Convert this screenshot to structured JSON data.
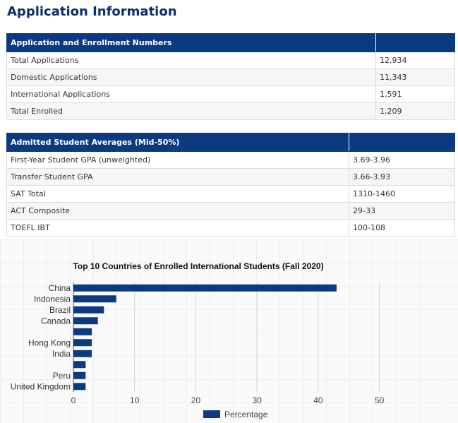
{
  "page": {
    "title": "Application Information"
  },
  "enrollment_table": {
    "headers": [
      "Application and Enrollment Numbers",
      ""
    ],
    "rows": [
      [
        "Total Applications",
        "12,934"
      ],
      [
        "Domestic Applications",
        "11,343"
      ],
      [
        "International Applications",
        "1,591"
      ],
      [
        "Total Enrolled",
        "1,209"
      ]
    ]
  },
  "averages_table": {
    "headers": [
      "Admitted Student Averages (Mid-50%)",
      ""
    ],
    "rows": [
      [
        "First-Year Student GPA (unweighted)",
        "3.69-3.96"
      ],
      [
        "Transfer Student GPA",
        "3.66-3.93"
      ],
      [
        "SAT Total",
        "1310-1460"
      ],
      [
        "ACT Composite",
        "29-33"
      ],
      [
        "TOEFL IBT",
        "100-108"
      ]
    ]
  },
  "chart_data": {
    "type": "bar",
    "orientation": "horizontal",
    "title": "Top 10 Countries of Enrolled International Students (Fall 2020)",
    "categories": [
      "China",
      "Indonesia",
      "Brazil",
      "Canada",
      "",
      "Hong Kong",
      "India",
      "",
      "Peru",
      "United Kingdom"
    ],
    "series": [
      {
        "name": "Percentage",
        "values": [
          43,
          7,
          5,
          4,
          3,
          3,
          3,
          2,
          2,
          2
        ]
      }
    ],
    "xlim": [
      0,
      55
    ],
    "xticks": [
      0,
      10,
      20,
      30,
      40,
      50
    ],
    "xlabel": "",
    "ylabel": "",
    "grid": true,
    "legend": "bottom",
    "colors": {
      "bar": "#0b3a80",
      "grid": "#d6d6d6",
      "axis": "#555555"
    }
  }
}
